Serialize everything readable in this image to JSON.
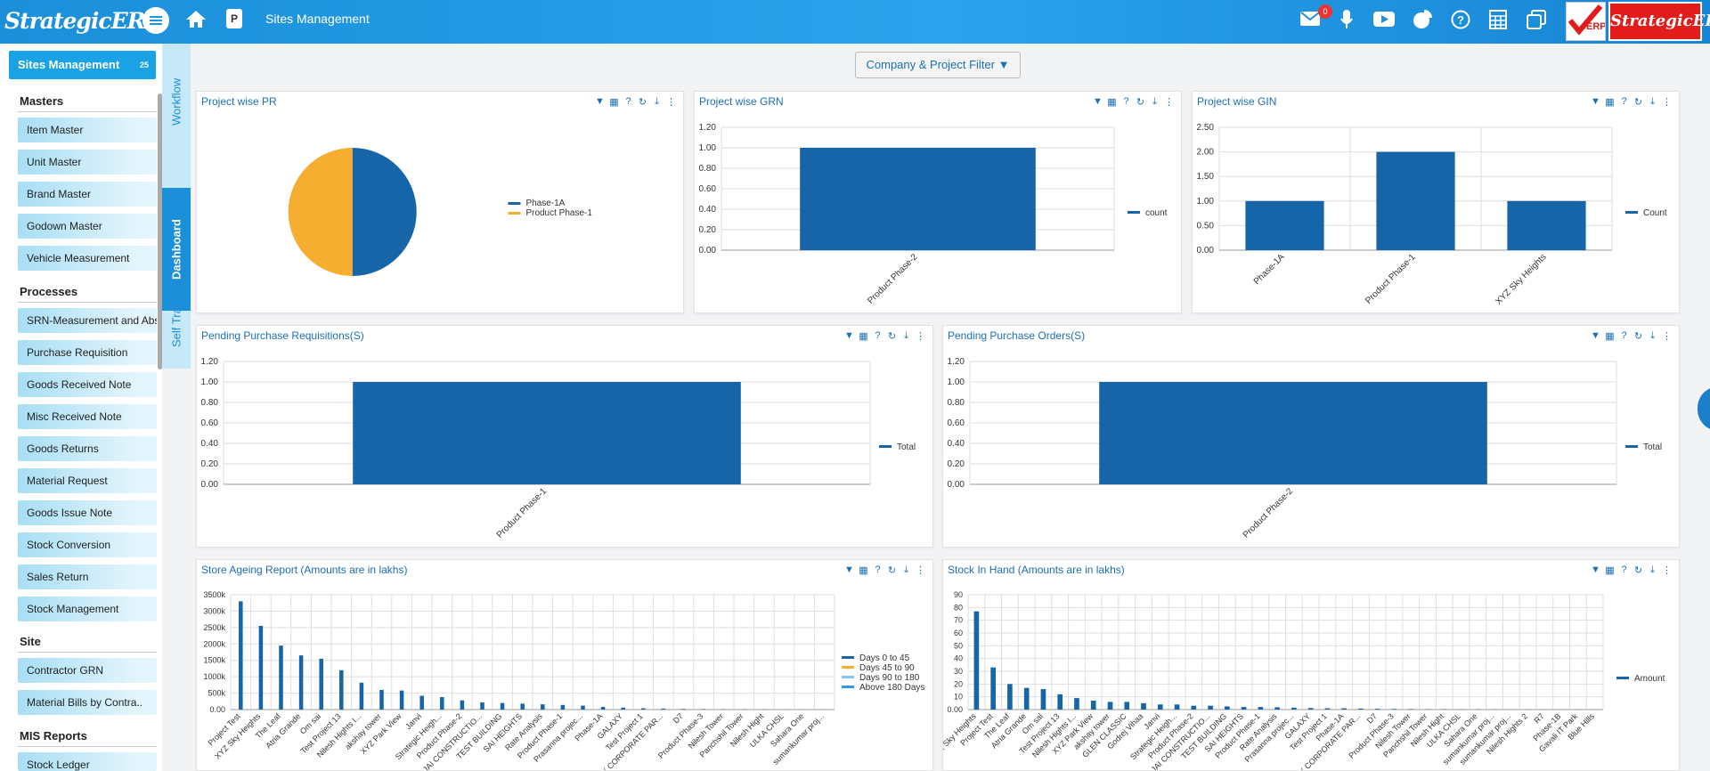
{
  "header": {
    "logo": "StrategicERP",
    "page_title": "Sites Management",
    "page_badge": "P",
    "notif_count": "0",
    "brand_label": "StrategicERP",
    "brand_tag": "ERP"
  },
  "sidebar": {
    "module": "Sites Management",
    "module_count": "25",
    "sections": [
      {
        "title": "Masters",
        "items": [
          "Item Master",
          "Unit Master",
          "Brand Master",
          "Godown Master",
          "Vehicle Measurement"
        ]
      },
      {
        "title": "Processes",
        "items": [
          "SRN-Measurement and Abst",
          "Purchase Requisition",
          "Goods Received Note",
          "Misc Received Note",
          "Goods Returns",
          "Material Request",
          "Goods Issue Note",
          "Stock Conversion",
          "Sales Return",
          "Stock Management"
        ]
      },
      {
        "title": "Site",
        "items": [
          "Contractor GRN",
          "Material Bills by Contra.."
        ]
      },
      {
        "title": "MIS Reports",
        "items": [
          "Stock Ledger"
        ]
      }
    ]
  },
  "vtabs": [
    "Workflow",
    "Dashboard",
    "Self Training"
  ],
  "filter_label": "Company & Project Filter",
  "colors": {
    "blue": "#1565a8",
    "orange": "#f5ae30",
    "light_blue": "#2d9be3",
    "accent": "#1b8fd9"
  },
  "panels": {
    "pr": {
      "title": "Project wise PR"
    },
    "grn": {
      "title": "Project wise GRN"
    },
    "gin": {
      "title": "Project wise GIN"
    },
    "ppr": {
      "title": "Pending Purchase Requisitions(S)"
    },
    "ppo": {
      "title": "Pending Purchase Orders(S)"
    },
    "age": {
      "title": "Store Ageing Report (Amounts are in lakhs)"
    },
    "sih": {
      "title": "Stock In Hand (Amounts are in lakhs)"
    }
  },
  "chart_data": [
    {
      "type": "pie",
      "title": "Project wise PR",
      "series": [
        {
          "name": "Phase-1A",
          "value": 1
        },
        {
          "name": "Product Phase-1",
          "value": 1
        }
      ]
    },
    {
      "type": "bar",
      "title": "Project wise GRN",
      "categories": [
        "Product Phase-2"
      ],
      "series": [
        {
          "name": "count",
          "values": [
            1
          ]
        }
      ],
      "ylim": [
        0,
        1.2
      ],
      "yticks": [
        "0.00",
        "0.20",
        "0.40",
        "0.60",
        "0.80",
        "1.00",
        "1.20"
      ]
    },
    {
      "type": "bar",
      "title": "Project wise GIN",
      "categories": [
        "Phase-1A",
        "Product Phase-1",
        "XYZ Sky Heights"
      ],
      "series": [
        {
          "name": "Count",
          "values": [
            1,
            2,
            1
          ]
        }
      ],
      "ylim": [
        0,
        2.5
      ],
      "yticks": [
        "0.00",
        "0.50",
        "1.00",
        "1.50",
        "2.00",
        "2.50"
      ]
    },
    {
      "type": "bar",
      "title": "Pending Purchase Requisitions(S)",
      "categories": [
        "Product Phase-1"
      ],
      "series": [
        {
          "name": "Total",
          "values": [
            1
          ]
        }
      ],
      "ylim": [
        0,
        1.2
      ],
      "yticks": [
        "0.00",
        "0.20",
        "0.40",
        "0.60",
        "0.80",
        "1.00",
        "1.20"
      ]
    },
    {
      "type": "bar",
      "title": "Pending Purchase Orders(S)",
      "categories": [
        "Product Phase-2"
      ],
      "series": [
        {
          "name": "Total",
          "values": [
            1
          ]
        }
      ],
      "ylim": [
        0,
        1.2
      ],
      "yticks": [
        "0.00",
        "0.20",
        "0.40",
        "0.60",
        "0.80",
        "1.00",
        "1.20"
      ]
    },
    {
      "type": "bar",
      "title": "Store Ageing Report (Amounts are in lakhs)",
      "categories": [
        "Project Test",
        "XYZ Sky Heights",
        "The Leaf",
        "Atria Grande",
        "Om sai",
        "Test Project 13",
        "Nilesh Hights I...",
        "akshay tower",
        "XYZ Park View",
        "Janvi",
        "Strategic Heigh...",
        "Product Phase-2",
        "JAI CONSTRUCTIO...",
        "TEST BUILDING",
        "SAI HEIGHTS",
        "Rate Analysis",
        "Product Phase-1",
        "Prasanna projec...",
        "Phase-1A",
        "GALAXY",
        "Test Project 1",
        "X CORPORATE PAR...",
        "D7",
        "Product Phase-3",
        "Nilesh Tower",
        "Panchshil Tower",
        "Nilesh Hight",
        "ULKA CHSL",
        "Sahara One",
        "sumankumar proj..."
      ],
      "series": [
        {
          "name": "Days 0 to 45",
          "values": [
            3300,
            2550,
            1950,
            1650,
            1550,
            1200,
            820,
            600,
            580,
            420,
            380,
            280,
            220,
            200,
            180,
            160,
            140,
            120,
            80,
            60,
            40,
            30,
            20,
            15,
            10,
            8,
            6,
            4,
            3,
            2
          ]
        },
        {
          "name": "Days 45 to 90",
          "values": [
            0,
            0,
            0,
            0,
            0,
            0,
            0,
            0,
            0,
            0,
            0,
            0,
            0,
            0,
            0,
            0,
            0,
            0,
            0,
            0,
            0,
            0,
            0,
            0,
            0,
            0,
            0,
            0,
            0,
            0
          ]
        },
        {
          "name": "Days 90 to 180",
          "values": [
            0,
            0,
            0,
            0,
            0,
            0,
            0,
            0,
            0,
            0,
            0,
            0,
            0,
            0,
            0,
            0,
            0,
            0,
            0,
            0,
            0,
            0,
            0,
            0,
            0,
            0,
            0,
            0,
            0,
            0
          ]
        },
        {
          "name": "Above 180 Days",
          "values": [
            0,
            0,
            0,
            0,
            0,
            0,
            0,
            0,
            0,
            0,
            0,
            0,
            0,
            0,
            0,
            0,
            0,
            0,
            0,
            0,
            0,
            0,
            0,
            0,
            0,
            0,
            0,
            0,
            0,
            0
          ]
        }
      ],
      "ylim": [
        0,
        3500
      ],
      "yticks": [
        "0.00",
        "500k",
        "1000k",
        "1500k",
        "2000k",
        "2500k",
        "3000k",
        "3500k"
      ]
    },
    {
      "type": "bar",
      "title": "Stock In Hand (Amounts are in lakhs)",
      "categories": [
        "XYZ Sky Heights",
        "Project Test",
        "The Leaf",
        "Atria Grande",
        "Om sai",
        "Test Project 13",
        "Nilesh Hights I...",
        "XYZ Park View",
        "akshay tower",
        "GLEN CLASSIC",
        "Godrej Vihaa",
        "Janvi",
        "Strategic Heigh...",
        "Product Phase-2",
        "JAI CONSTRUCTIO...",
        "TEST BUILDING",
        "SAI HEIGHTS",
        "Product Phase-1",
        "Rate Analysis",
        "Prasanna projec...",
        "GALAXY",
        "Test Project 1",
        "Phase-1A",
        "X CORPORATE PAR...",
        "D7",
        "Product Phase-3",
        "Nilesh Tower",
        "Panchshil Tower",
        "Nilesh Hight",
        "ULKA CHSL",
        "Sahara One",
        "sumankumar proj...",
        "sumankumar proj...",
        "Nilesh Hights 2",
        "R7",
        "Phase-1B",
        "Gavali IT Park",
        "Blue Hills"
      ],
      "series": [
        {
          "name": "Amount",
          "values": [
            77,
            33,
            20,
            17,
            16,
            12,
            9,
            7,
            6,
            6,
            5,
            4,
            4,
            3,
            3,
            2.5,
            2,
            2,
            1.8,
            1.5,
            1.2,
            1,
            1,
            0.8,
            0.6,
            0.5,
            0.4,
            0.3,
            0.3,
            0.2,
            0.2,
            0.2,
            0.1,
            0.1,
            0.1,
            0.1,
            0.1,
            0.1
          ]
        }
      ],
      "ylim": [
        0,
        90
      ],
      "yticks": [
        "0.00",
        "10",
        "20",
        "30",
        "40",
        "50",
        "60",
        "70",
        "80",
        "90"
      ]
    }
  ]
}
